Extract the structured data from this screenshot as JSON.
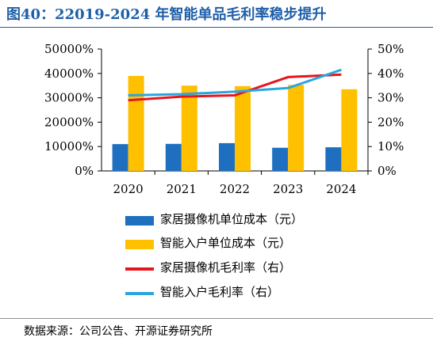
{
  "title": "图40：22019-2024 年智能单品毛利率稳步提升",
  "source": "数据来源：公司公告、开源证券研究所",
  "colors": {
    "bar_camera": "#1f6fc0",
    "bar_smart": "#ffc000",
    "line_camera": "#e8141c",
    "line_smart": "#2aa6df",
    "title": "#1f5fa8"
  },
  "chart_data": {
    "type": "bar+line",
    "categories": [
      "2020",
      "2021",
      "2022",
      "2023",
      "2024"
    ],
    "left_axis": {
      "ticks": [
        "0%",
        "10000%",
        "20000%",
        "30000%",
        "40000%",
        "50000%"
      ],
      "ylim": [
        0,
        50000
      ]
    },
    "right_axis": {
      "ticks": [
        "0%",
        "10%",
        "20%",
        "30%",
        "40%",
        "50%"
      ],
      "ylim": [
        0,
        50
      ]
    },
    "bars": [
      {
        "name": "家居摄像机单位成本（元）",
        "values": [
          11000,
          11100,
          11400,
          9500,
          9700
        ]
      },
      {
        "name": "智能入户单位成本（元）",
        "values": [
          39000,
          35000,
          34800,
          35300,
          33500
        ]
      }
    ],
    "lines": [
      {
        "name": "家居摄像机毛利率（右）",
        "values": [
          29,
          30.5,
          31,
          38.5,
          39.5
        ]
      },
      {
        "name": "智能入户毛利率（右）",
        "values": [
          31,
          31.5,
          32.5,
          34,
          41.5
        ]
      }
    ],
    "legend": [
      "家居摄像机单位成本（元）",
      "智能入户单位成本（元）",
      "家居摄像机毛利率（右）",
      "智能入户毛利率（右）"
    ],
    "grid": false,
    "legend_position": "bottom"
  }
}
